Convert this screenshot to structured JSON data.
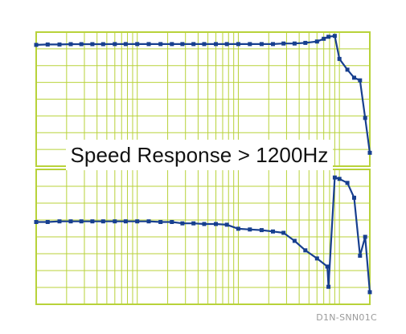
{
  "colors": {
    "grid": "#b8d23a",
    "series": "#173f8f",
    "background": "#ffffff",
    "title_text": "#111111",
    "code_text": "#9a9a9a"
  },
  "overlay_title": "Speed Response > 1200Hz",
  "figure_code": "D1N-SNN01C",
  "chart_data": [
    {
      "type": "line",
      "panel": "magnitude",
      "title": "",
      "xlabel": "",
      "ylabel": "",
      "x_scale": "log",
      "grid": true,
      "legend": "none",
      "xlim": [
        1,
        2000
      ],
      "ylim": [
        0,
        1
      ],
      "series": [
        {
          "x": [
            1,
            1.3,
            1.7,
            2.2,
            2.8,
            3.6,
            4.6,
            6,
            7.7,
            10,
            13,
            17,
            22,
            28,
            36,
            46,
            60,
            77,
            100,
            130,
            170,
            220,
            280,
            360,
            460,
            600,
            700,
            780,
            900,
            1000,
            1200,
            1400,
            1600,
            1800,
            2000
          ],
          "y": [
            0.905,
            0.908,
            0.908,
            0.91,
            0.91,
            0.91,
            0.91,
            0.911,
            0.911,
            0.911,
            0.911,
            0.911,
            0.911,
            0.911,
            0.911,
            0.911,
            0.911,
            0.911,
            0.911,
            0.911,
            0.911,
            0.911,
            0.915,
            0.915,
            0.92,
            0.93,
            0.95,
            0.965,
            0.972,
            0.8,
            0.72,
            0.66,
            0.64,
            0.36,
            0.1
          ]
        }
      ]
    },
    {
      "type": "line",
      "panel": "phase",
      "title": "",
      "xlabel": "",
      "ylabel": "",
      "x_scale": "log",
      "grid": true,
      "legend": "none",
      "xlim": [
        1,
        2000
      ],
      "ylim": [
        0,
        1
      ],
      "series": [
        {
          "x": [
            1,
            1.3,
            1.7,
            2.2,
            2.8,
            3.6,
            4.6,
            6,
            7.7,
            10,
            13,
            17,
            22,
            28,
            36,
            46,
            60,
            77,
            100,
            130,
            170,
            220,
            280,
            360,
            460,
            600,
            760,
            780,
            900,
            1000,
            1200,
            1400,
            1600,
            1800,
            2000
          ],
          "y": [
            0.61,
            0.61,
            0.615,
            0.615,
            0.615,
            0.615,
            0.615,
            0.615,
            0.615,
            0.615,
            0.615,
            0.61,
            0.61,
            0.6,
            0.6,
            0.595,
            0.595,
            0.59,
            0.56,
            0.555,
            0.55,
            0.54,
            0.53,
            0.47,
            0.4,
            0.34,
            0.28,
            0.13,
            0.94,
            0.93,
            0.9,
            0.79,
            0.36,
            0.5,
            0.09
          ]
        }
      ]
    }
  ]
}
